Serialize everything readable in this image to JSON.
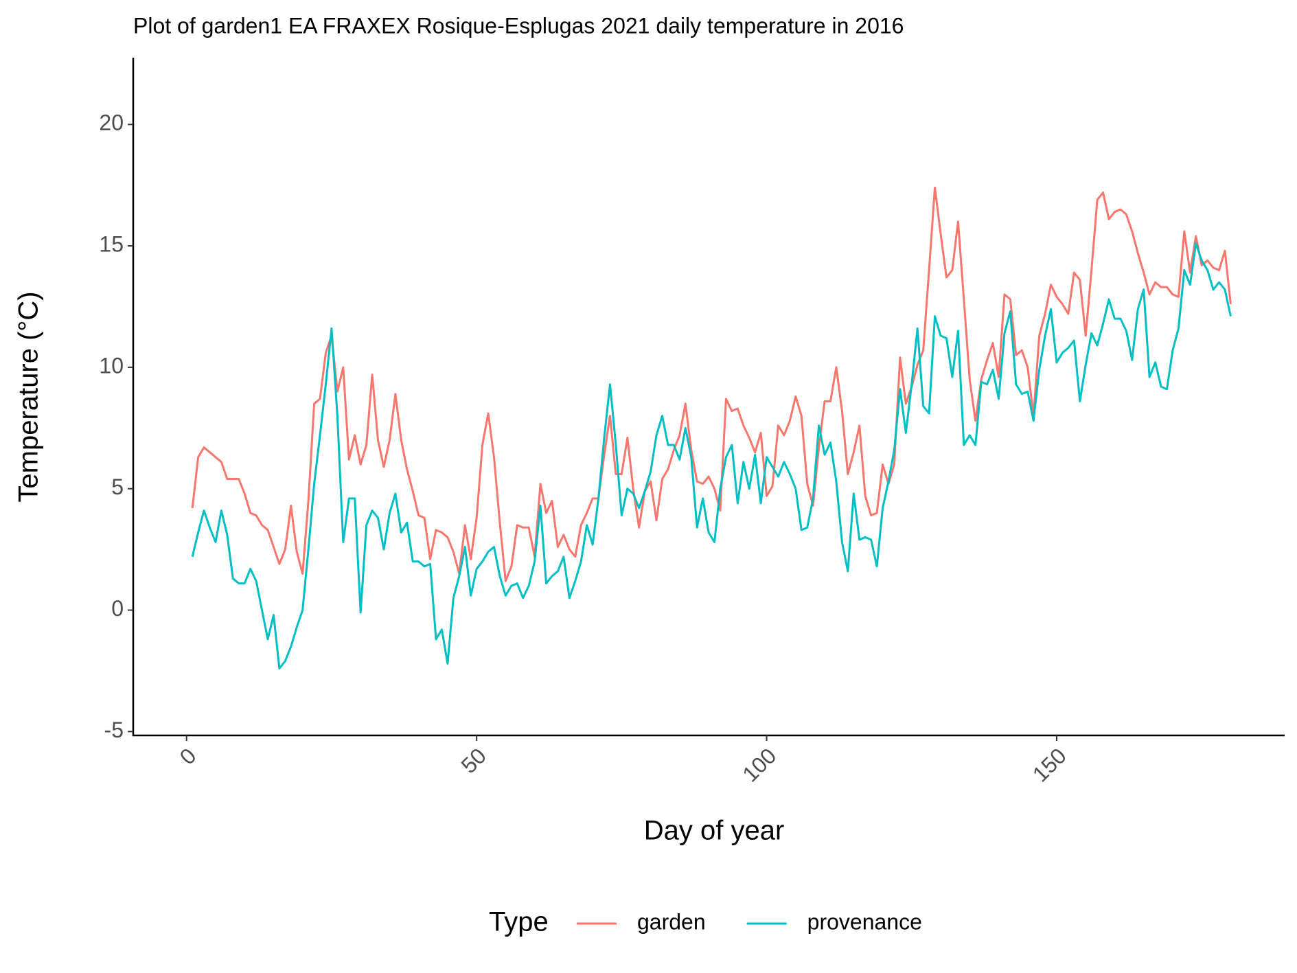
{
  "chart_data": {
    "type": "line",
    "title": "Plot of garden1 EA FRAXEX Rosique-Esplugas 2021 daily temperature in 2016",
    "x_label": "Day of year",
    "y_label": "Temperature (°C)",
    "legend_title": "Type",
    "legend_position": "bottom",
    "x": [
      1,
      2,
      3,
      4,
      5,
      6,
      7,
      8,
      9,
      10,
      11,
      12,
      13,
      14,
      15,
      16,
      17,
      18,
      19,
      20,
      21,
      22,
      23,
      24,
      25,
      26,
      27,
      28,
      29,
      30,
      31,
      32,
      33,
      34,
      35,
      36,
      37,
      38,
      39,
      40,
      41,
      42,
      43,
      44,
      45,
      46,
      47,
      48,
      49,
      50,
      51,
      52,
      53,
      54,
      55,
      56,
      57,
      58,
      59,
      60,
      61,
      62,
      63,
      64,
      65,
      66,
      67,
      68,
      69,
      70,
      71,
      72,
      73,
      74,
      75,
      76,
      77,
      78,
      79,
      80,
      81,
      82,
      83,
      84,
      85,
      86,
      87,
      88,
      89,
      90,
      91,
      92,
      93,
      94,
      95,
      96,
      97,
      98,
      99,
      100,
      101,
      102,
      103,
      104,
      105,
      106,
      107,
      108,
      109,
      110,
      111,
      112,
      113,
      114,
      115,
      116,
      117,
      118,
      119,
      120,
      121,
      122,
      123,
      124,
      125,
      126,
      127,
      128,
      129,
      130,
      131,
      132,
      133,
      134,
      135,
      136,
      137,
      138,
      139,
      140,
      141,
      142,
      143,
      144,
      145,
      146,
      147,
      148,
      149,
      150,
      151,
      152,
      153,
      154,
      155,
      156,
      157,
      158,
      159,
      160,
      161,
      162,
      163,
      164,
      165,
      166,
      167,
      168,
      169,
      170,
      171,
      172,
      173,
      174,
      175,
      176,
      177,
      178,
      179,
      180
    ],
    "series": [
      {
        "name": "garden",
        "color": "#F8766D",
        "values": [
          4.2,
          6.3,
          6.7,
          6.5,
          6.3,
          6.1,
          5.4,
          5.4,
          5.4,
          4.8,
          4.0,
          3.9,
          3.5,
          3.3,
          2.6,
          1.9,
          2.5,
          4.3,
          2.4,
          1.5,
          4.5,
          8.5,
          8.7,
          10.6,
          11.3,
          9.0,
          10.0,
          6.2,
          7.2,
          6.0,
          6.8,
          9.7,
          7.0,
          5.9,
          7.0,
          8.9,
          7.0,
          5.8,
          4.9,
          3.9,
          3.8,
          2.1,
          3.3,
          3.2,
          3.0,
          2.4,
          1.5,
          3.5,
          2.1,
          3.8,
          6.8,
          8.1,
          6.3,
          3.6,
          1.2,
          1.8,
          3.5,
          3.4,
          3.4,
          2.2,
          5.2,
          4.0,
          4.5,
          2.6,
          3.1,
          2.5,
          2.2,
          3.5,
          4.0,
          4.6,
          4.6,
          6.4,
          8.0,
          5.6,
          5.6,
          7.1,
          5.0,
          3.4,
          4.9,
          5.3,
          3.7,
          5.4,
          5.8,
          6.6,
          7.2,
          8.5,
          6.6,
          5.3,
          5.2,
          5.5,
          5.0,
          4.1,
          8.7,
          8.2,
          8.3,
          7.6,
          7.1,
          6.5,
          7.3,
          4.7,
          5.1,
          7.6,
          7.2,
          7.8,
          8.8,
          8.0,
          5.2,
          4.3,
          6.7,
          8.6,
          8.6,
          10.0,
          8.2,
          5.6,
          6.5,
          7.6,
          4.7,
          3.9,
          4.0,
          6.0,
          5.2,
          6.0,
          10.4,
          8.5,
          9.2,
          10.1,
          10.7,
          14.0,
          17.4,
          15.5,
          13.7,
          14.0,
          16.0,
          12.8,
          9.5,
          7.8,
          9.5,
          10.3,
          11.0,
          9.6,
          13.0,
          12.8,
          10.5,
          10.7,
          10.0,
          8.0,
          11.3,
          12.2,
          13.4,
          12.9,
          12.6,
          12.2,
          13.9,
          13.6,
          11.3,
          14.0,
          16.9,
          17.2,
          16.1,
          16.4,
          16.5,
          16.3,
          15.6,
          14.7,
          13.9,
          13.0,
          13.5,
          13.3,
          13.3,
          13.0,
          12.9,
          15.6,
          13.9,
          15.4,
          14.2,
          14.4,
          14.1,
          14.0,
          14.8,
          12.6
        ]
      },
      {
        "name": "provenance",
        "color": "#00BFC4",
        "values": [
          2.2,
          3.2,
          4.1,
          3.4,
          2.8,
          4.1,
          3.1,
          1.3,
          1.1,
          1.1,
          1.7,
          1.2,
          0.0,
          -1.2,
          -0.2,
          -2.4,
          -2.1,
          -1.5,
          -0.7,
          0.0,
          2.5,
          5.2,
          7.2,
          9.3,
          11.6,
          8.0,
          2.8,
          4.6,
          4.6,
          -0.1,
          3.5,
          4.1,
          3.8,
          2.5,
          4.0,
          4.8,
          3.2,
          3.6,
          2.0,
          2.0,
          1.8,
          1.9,
          -1.2,
          -0.8,
          -2.2,
          0.5,
          1.4,
          2.6,
          0.6,
          1.7,
          2.0,
          2.4,
          2.6,
          1.4,
          0.6,
          1.0,
          1.1,
          0.5,
          1.0,
          2.0,
          4.3,
          1.1,
          1.4,
          1.6,
          2.2,
          0.5,
          1.2,
          2.0,
          3.5,
          2.7,
          4.6,
          7.1,
          9.3,
          6.8,
          3.9,
          5.0,
          4.8,
          4.2,
          4.9,
          5.7,
          7.2,
          8.0,
          6.8,
          6.8,
          6.2,
          7.5,
          6.3,
          3.4,
          4.6,
          3.2,
          2.8,
          5.0,
          6.3,
          6.8,
          4.4,
          6.1,
          5.0,
          6.4,
          4.4,
          6.3,
          5.9,
          5.5,
          6.1,
          5.6,
          5.0,
          3.3,
          3.4,
          4.6,
          7.6,
          6.4,
          6.9,
          5.3,
          2.8,
          1.6,
          4.8,
          2.9,
          3.0,
          2.9,
          1.8,
          4.2,
          5.3,
          6.6,
          9.1,
          7.3,
          9.3,
          11.6,
          8.4,
          8.1,
          12.1,
          11.3,
          11.2,
          9.6,
          11.5,
          6.8,
          7.2,
          6.8,
          9.4,
          9.3,
          9.9,
          8.7,
          11.4,
          12.3,
          9.3,
          8.9,
          9.0,
          7.8,
          9.9,
          11.3,
          12.4,
          10.2,
          10.6,
          10.8,
          11.1,
          8.6,
          10.1,
          11.4,
          10.9,
          11.8,
          12.8,
          12.0,
          12.0,
          11.5,
          10.3,
          12.4,
          13.2,
          9.6,
          10.2,
          9.2,
          9.1,
          10.7,
          11.6,
          14.0,
          13.4,
          15.1,
          14.4,
          14.0,
          13.2,
          13.5,
          13.2,
          12.1
        ]
      }
    ],
    "xlim": [
      -9.2,
      189.3
    ],
    "ylim": [
      -5.16,
      22.75
    ],
    "xticks": [
      0,
      50,
      100,
      150
    ],
    "yticks": [
      -5,
      0,
      5,
      10,
      15,
      20
    ]
  }
}
